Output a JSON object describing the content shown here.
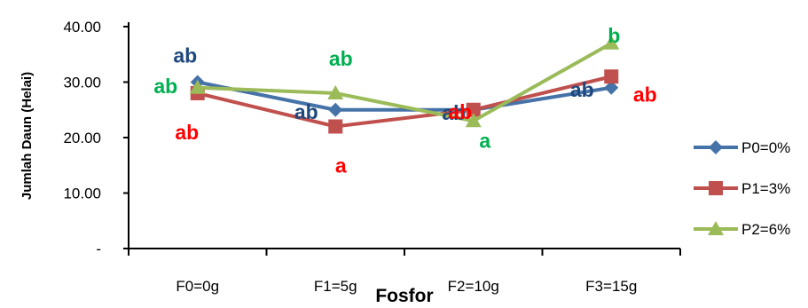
{
  "chart_data": {
    "type": "line",
    "title": "",
    "xlabel": "Fosfor",
    "ylabel": "Jumlah Daun (Helai)",
    "categories": [
      "F0=0g",
      "F1=5g",
      "F2=10g",
      "F3=15g"
    ],
    "ylim": [
      0,
      40
    ],
    "y_ticks": [
      {
        "value": 0,
        "label": "-"
      },
      {
        "value": 10,
        "label": "10.00"
      },
      {
        "value": 20,
        "label": "20.00"
      },
      {
        "value": 30,
        "label": "30.00"
      },
      {
        "value": 40,
        "label": "40.00"
      }
    ],
    "grid": false,
    "legend_position": "right",
    "series": [
      {
        "name": "P0=0%",
        "values": [
          30,
          25,
          25,
          29
        ],
        "color": "#4572A7",
        "marker": "diamond"
      },
      {
        "name": "P1=3%",
        "values": [
          28,
          22,
          25,
          31
        ],
        "color": "#C0504D",
        "marker": "square"
      },
      {
        "name": "P2=6%",
        "values": [
          29,
          28,
          23,
          37
        ],
        "color": "#9BBB59",
        "marker": "triangle"
      }
    ],
    "annotations": [
      {
        "text": "ab",
        "series": "P0=0%",
        "category": "F0=0g",
        "color": "#1F497D"
      },
      {
        "text": "ab",
        "series": "P1=3%",
        "category": "F0=0g",
        "color": "#FF0000"
      },
      {
        "text": "ab",
        "series": "P2=6%",
        "category": "F0=0g",
        "color": "#00B050"
      },
      {
        "text": "ab",
        "series": "P0=0%",
        "category": "F1=5g",
        "color": "#1F497D"
      },
      {
        "text": "a",
        "series": "P1=3%",
        "category": "F1=5g",
        "color": "#FF0000"
      },
      {
        "text": "ab",
        "series": "P2=6%",
        "category": "F1=5g",
        "color": "#00B050"
      },
      {
        "text": "ab",
        "series": "P0=0%",
        "category": "F2=10g",
        "color": "#1F497D"
      },
      {
        "text": "ab",
        "series": "P1=3%",
        "category": "F2=10g",
        "color": "#FF0000"
      },
      {
        "text": "a",
        "series": "P2=6%",
        "category": "F2=10g",
        "color": "#00B050"
      },
      {
        "text": "ab",
        "series": "P0=0%",
        "category": "F3=15g",
        "color": "#1F497D"
      },
      {
        "text": "ab",
        "series": "P1=3%",
        "category": "F3=15g",
        "color": "#FF0000"
      },
      {
        "text": "b",
        "series": "P2=6%",
        "category": "F3=15g",
        "color": "#00B050"
      }
    ]
  }
}
